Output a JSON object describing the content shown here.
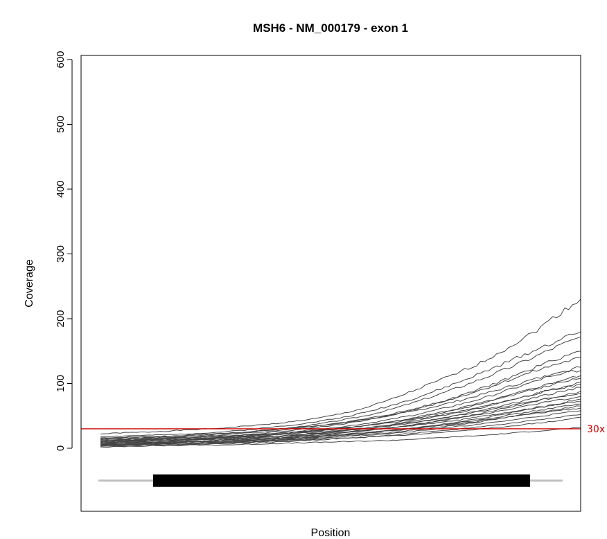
{
  "chart_data": {
    "type": "line",
    "title": "MSH6 - NM_000179 - exon 1",
    "xlabel": "Position",
    "ylabel": "Coverage",
    "ylim": [
      -100,
      600
    ],
    "yticks": [
      "0",
      "100",
      "200",
      "300",
      "400",
      "500",
      "600"
    ],
    "ytick_values": [
      0,
      100,
      200,
      300,
      400,
      500,
      600
    ],
    "grid": false,
    "legend": "none",
    "x": [
      0,
      0.05,
      0.1,
      0.15,
      0.2,
      0.25,
      0.3,
      0.35,
      0.4,
      0.45,
      0.5,
      0.55,
      0.6,
      0.65,
      0.7,
      0.75,
      0.8,
      0.85,
      0.9,
      0.95,
      1.0
    ],
    "series_color": "#444444",
    "series": [
      {
        "values": [
          22,
          24,
          25,
          27,
          29,
          31,
          34,
          37,
          41,
          46,
          53,
          62,
          74,
          88,
          103,
          118,
          135,
          156,
          178,
          205,
          230
        ]
      },
      {
        "values": [
          18,
          19,
          20,
          21,
          23,
          25,
          28,
          32,
          36,
          41,
          47,
          55,
          65,
          76,
          89,
          103,
          118,
          134,
          150,
          166,
          180
        ]
      },
      {
        "values": [
          15,
          16,
          17,
          18,
          20,
          22,
          25,
          28,
          32,
          37,
          43,
          50,
          59,
          70,
          82,
          95,
          109,
          124,
          140,
          157,
          172
        ]
      },
      {
        "values": [
          12,
          13,
          14,
          15,
          17,
          19,
          21,
          24,
          28,
          32,
          37,
          43,
          50,
          59,
          69,
          81,
          94,
          108,
          123,
          138,
          150
        ]
      },
      {
        "values": [
          14,
          15,
          16,
          17,
          18,
          20,
          23,
          26,
          30,
          34,
          39,
          45,
          52,
          60,
          70,
          80,
          92,
          105,
          118,
          130,
          140
        ]
      },
      {
        "values": [
          10,
          11,
          12,
          13,
          15,
          17,
          19,
          22,
          25,
          29,
          33,
          38,
          44,
          51,
          59,
          68,
          78,
          90,
          102,
          115,
          125
        ]
      },
      {
        "values": [
          16,
          17,
          18,
          19,
          21,
          23,
          25,
          28,
          31,
          35,
          39,
          44,
          50,
          57,
          65,
          74,
          84,
          95,
          106,
          115,
          120
        ]
      },
      {
        "values": [
          8,
          9,
          10,
          11,
          13,
          15,
          17,
          20,
          23,
          26,
          30,
          35,
          40,
          47,
          54,
          62,
          71,
          81,
          92,
          103,
          112
        ]
      },
      {
        "values": [
          11,
          12,
          13,
          14,
          15,
          17,
          19,
          21,
          24,
          27,
          31,
          35,
          40,
          46,
          53,
          61,
          70,
          80,
          90,
          100,
          108
        ]
      },
      {
        "values": [
          6,
          7,
          8,
          9,
          11,
          13,
          15,
          17,
          20,
          23,
          27,
          31,
          36,
          42,
          49,
          56,
          64,
          73,
          83,
          93,
          102
        ]
      },
      {
        "values": [
          13,
          14,
          15,
          16,
          17,
          18,
          20,
          22,
          25,
          28,
          31,
          35,
          39,
          44,
          50,
          57,
          65,
          74,
          83,
          91,
          98
        ]
      },
      {
        "values": [
          9,
          10,
          11,
          12,
          13,
          14,
          16,
          18,
          20,
          23,
          26,
          30,
          34,
          39,
          45,
          52,
          60,
          68,
          77,
          86,
          94
        ]
      },
      {
        "values": [
          5,
          6,
          7,
          8,
          9,
          10,
          12,
          14,
          17,
          20,
          23,
          27,
          31,
          36,
          42,
          48,
          55,
          63,
          71,
          80,
          88
        ]
      },
      {
        "values": [
          12,
          13,
          13,
          14,
          15,
          16,
          18,
          20,
          22,
          25,
          28,
          31,
          35,
          40,
          45,
          51,
          58,
          65,
          72,
          79,
          85
        ]
      },
      {
        "values": [
          7,
          8,
          9,
          10,
          11,
          12,
          14,
          16,
          18,
          21,
          24,
          27,
          31,
          36,
          41,
          47,
          53,
          60,
          67,
          74,
          80
        ]
      },
      {
        "values": [
          4,
          5,
          6,
          7,
          8,
          9,
          11,
          13,
          15,
          17,
          20,
          23,
          27,
          31,
          36,
          41,
          47,
          54,
          61,
          68,
          76
        ]
      },
      {
        "values": [
          10,
          11,
          12,
          13,
          14,
          15,
          16,
          18,
          20,
          22,
          25,
          28,
          31,
          35,
          39,
          44,
          50,
          56,
          62,
          68,
          72
        ]
      },
      {
        "values": [
          6,
          7,
          8,
          9,
          10,
          11,
          12,
          14,
          16,
          18,
          21,
          24,
          27,
          31,
          35,
          40,
          45,
          51,
          57,
          63,
          68
        ]
      },
      {
        "values": [
          3,
          4,
          5,
          6,
          7,
          8,
          9,
          11,
          13,
          15,
          18,
          21,
          24,
          28,
          32,
          37,
          42,
          48,
          54,
          60,
          65
        ]
      },
      {
        "values": [
          8,
          9,
          9,
          10,
          11,
          12,
          13,
          15,
          17,
          19,
          21,
          24,
          27,
          30,
          34,
          38,
          43,
          48,
          53,
          58,
          62
        ]
      },
      {
        "values": [
          5,
          5,
          6,
          7,
          8,
          9,
          10,
          12,
          14,
          16,
          18,
          20,
          23,
          26,
          30,
          34,
          38,
          43,
          48,
          53,
          58
        ]
      },
      {
        "values": [
          2,
          3,
          4,
          5,
          6,
          7,
          8,
          9,
          11,
          13,
          15,
          17,
          20,
          23,
          26,
          30,
          34,
          38,
          43,
          48,
          52
        ]
      },
      {
        "values": [
          6,
          6,
          7,
          8,
          8,
          9,
          10,
          11,
          12,
          14,
          15,
          17,
          19,
          21,
          24,
          27,
          30,
          34,
          38,
          42,
          48
        ]
      },
      {
        "values": [
          3,
          3,
          4,
          4,
          5,
          5,
          6,
          7,
          8,
          9,
          10,
          11,
          12,
          14,
          16,
          18,
          20,
          23,
          26,
          29,
          32
        ]
      }
    ],
    "reference_line": {
      "value": 30,
      "label": "30x",
      "color": "#cc0000"
    },
    "exon_track": {
      "line_color": "#c0c0c0",
      "box_color": "#000000"
    }
  }
}
